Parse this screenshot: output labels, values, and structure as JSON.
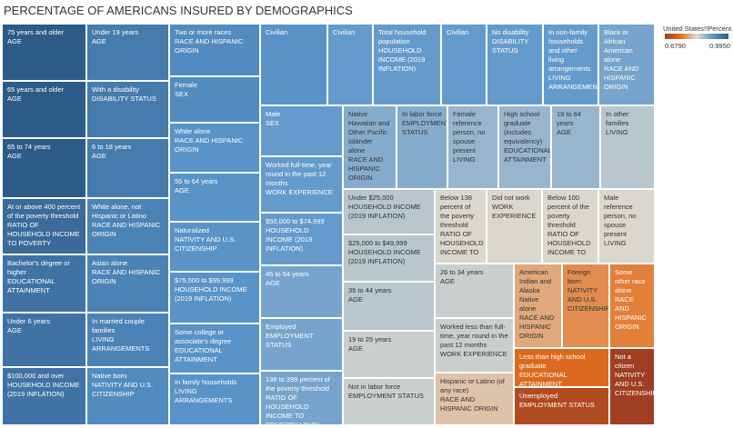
{
  "chart_data": {
    "type": "treemap",
    "title": "PERCENTAGE OF AMERICANS INSURED BY DEMOGRAPHICS",
    "legend_title": "United States!!Percent...",
    "colorlim": [
      {
        "value": 0.679,
        "label": "0.6790"
      },
      {
        "value": 0.995,
        "label": "0.9950"
      }
    ],
    "nodes": [
      {
        "label": "75 years and older",
        "group": "AGE",
        "value": 0.99
      },
      {
        "label": "65 years and older",
        "group": "AGE",
        "value": 0.99
      },
      {
        "label": "65 to 74 years",
        "group": "AGE",
        "value": 0.99
      },
      {
        "label": "At or above 400 percent of the poverty threshold",
        "group": "RATIO OF HOUSEHOLD INCOME TO POVERTY",
        "value": 0.97
      },
      {
        "label": "Bachelor's degree or higher",
        "group": "EDUCATIONAL ATTAINMENT",
        "value": 0.96
      },
      {
        "label": "Under 6 years",
        "group": "AGE",
        "value": 0.96
      },
      {
        "label": "$100,000 and over",
        "group": "HOUSEHOLD INCOME (2019 INFLATION)",
        "value": 0.96
      },
      {
        "label": "Under 19 years",
        "group": "AGE",
        "value": 0.95
      },
      {
        "label": "With a disability",
        "group": "DISABILITY STATUS",
        "value": 0.95
      },
      {
        "label": "6 to 18 years",
        "group": "AGE",
        "value": 0.95
      },
      {
        "label": "White alone, not Hispanic or Latino",
        "group": "RACE AND HISPANIC ORIGIN",
        "value": 0.94
      },
      {
        "label": "Asian alone",
        "group": "RACE AND HISPANIC ORIGIN",
        "value": 0.94
      },
      {
        "label": "In married couple families",
        "group": "LIVING ARRANGEMENTS",
        "value": 0.94
      },
      {
        "label": "Native born",
        "group": "NATIVITY AND U.S. CITIZENSHIP",
        "value": 0.93
      },
      {
        "label": "Two or more races",
        "group": "RACE AND HISPANIC ORIGIN",
        "value": 0.93
      },
      {
        "label": "Female",
        "group": "SEX",
        "value": 0.93
      },
      {
        "label": "White alone",
        "group": "RACE AND HISPANIC ORIGIN",
        "value": 0.92
      },
      {
        "label": "55 to 64 years",
        "group": "AGE",
        "value": 0.92
      },
      {
        "label": "Naturalized",
        "group": "NATIVITY AND U.S. CITIZENSHIP",
        "value": 0.92
      },
      {
        "label": "$75,000 to $99,999",
        "group": "HOUSEHOLD INCOME (2019 INFLATION)",
        "value": 0.92
      },
      {
        "label": "Some college or associate's degree",
        "group": "EDUCATIONAL ATTAINMENT",
        "value": 0.92
      },
      {
        "label": "In family households",
        "group": "LIVING ARRANGEMENTS",
        "value": 0.92
      },
      {
        "label": "Civilian",
        "group": null,
        "value": 0.92
      },
      {
        "label": "Civilian",
        "group": null,
        "value": 0.91
      },
      {
        "label": "Total household population",
        "group": "HOUSEHOLD INCOME (2019 INFLATION)",
        "value": 0.91
      },
      {
        "label": "Civilian",
        "group": null,
        "value": 0.91
      },
      {
        "label": "No disability",
        "group": "DISABILITY STATUS",
        "value": 0.91
      },
      {
        "label": "In non-family households and other living arrangements",
        "group": "LIVING ARRANGEMENTS",
        "value": 0.91
      },
      {
        "label": "Black or African American alone",
        "group": "RACE AND HISPANIC ORIGIN",
        "value": 0.9
      },
      {
        "label": "Male",
        "group": "SEX",
        "value": 0.91
      },
      {
        "label": "Worked full-time, year round in the past 12 months",
        "group": "WORK EXPERIENCE",
        "value": 0.91
      },
      {
        "label": "$50,000 to $74,999",
        "group": "HOUSEHOLD INCOME (2019 INFLATION)",
        "value": 0.91
      },
      {
        "label": "45 to 54 years",
        "group": "AGE",
        "value": 0.9
      },
      {
        "label": "Employed",
        "group": "EMPLOYMENT STATUS",
        "value": 0.9
      },
      {
        "label": "138 to 399 percent of the poverty threshold",
        "group": "RATIO OF HOUSEHOLD INCOME TO POVERTY LEVEL",
        "value": 0.9
      },
      {
        "label": "Native Hawaiian and Other Pacific Islander alone",
        "group": "RACE AND HISPANIC ORIGIN",
        "value": 0.89
      },
      {
        "label": "In labor force",
        "group": "EMPLOYMENT STATUS",
        "value": 0.89
      },
      {
        "label": "Female reference person, no spouse present",
        "group": "LIVING",
        "value": 0.88
      },
      {
        "label": "High school graduate (includes equivalency)",
        "group": "EDUCATIONAL ATTAINMENT",
        "value": 0.88
      },
      {
        "label": "19 to 64 years",
        "group": "AGE",
        "value": 0.88
      },
      {
        "label": "In other families",
        "group": "LIVING",
        "value": 0.86
      },
      {
        "label": "Under $25,000",
        "group": "HOUSEHOLD INCOME (2019 INFLATION)",
        "value": 0.86
      },
      {
        "label": "$25,000 to $49,999",
        "group": "HOUSEHOLD INCOME (2019 INFLATION)",
        "value": 0.86
      },
      {
        "label": "35 to 44 years",
        "group": "AGE",
        "value": 0.86
      },
      {
        "label": "19 to 25 years",
        "group": "AGE",
        "value": 0.85
      },
      {
        "label": "Not in labor force",
        "group": "EMPLOYMENT STATUS",
        "value": 0.85
      },
      {
        "label": "Below 138 percent of the poverty threshold",
        "group": "RATIO OF HOUSEHOLD INCOME TO",
        "value": 0.84
      },
      {
        "label": "Did not work",
        "group": "WORK EXPERIENCE",
        "value": 0.84
      },
      {
        "label": "Below 100 percent of the poverty threshold",
        "group": "RATIO OF HOUSEHOLD INCOME TO",
        "value": 0.84
      },
      {
        "label": "Male reference person, no spouse present",
        "group": "LIVING",
        "value": 0.84
      },
      {
        "label": "26 to 34 years",
        "group": "AGE",
        "value": 0.85
      },
      {
        "label": "Worked less than full-time, year round in the past 12 months",
        "group": "WORK EXPERIENCE",
        "value": 0.85
      },
      {
        "label": "Hispanic or Latino (of any race)",
        "group": "RACE AND HISPANIC ORIGIN",
        "value": 0.82
      },
      {
        "label": "American Indian and Alaska Native alone",
        "group": "RACE AND HISPANIC ORIGIN",
        "value": 0.8
      },
      {
        "label": "Foreign born",
        "group": "NATIVITY AND U.S. CITIZENSHIP",
        "value": 0.78
      },
      {
        "label": "Some other race alone",
        "group": "RACE AND HISPANIC ORIGIN",
        "value": 0.77
      },
      {
        "label": "Less than high school graduate",
        "group": "EDUCATIONAL ATTAINMENT",
        "value": 0.75
      },
      {
        "label": "Unemployed",
        "group": "EMPLOYMENT STATUS",
        "value": 0.7
      },
      {
        "label": "Not a citizen",
        "group": "NATIVITY AND U.S. CITIZENSHIP",
        "value": 0.68
      }
    ]
  }
}
